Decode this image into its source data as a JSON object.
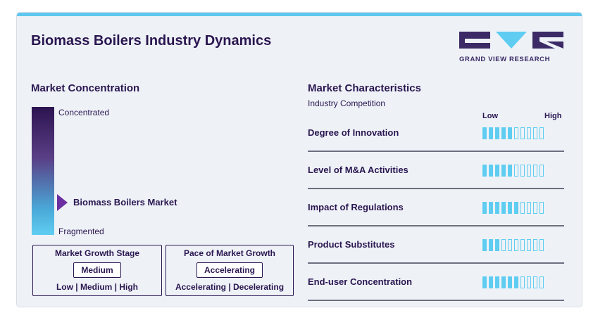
{
  "title": "Biomass Boilers Industry Dynamics",
  "logo": {
    "text": "GRAND VIEW RESEARCH",
    "colors": {
      "dark": "#3b2a66",
      "accent": "#5fcdf1"
    }
  },
  "concentration": {
    "heading": "Market Concentration",
    "top_label": "Concentrated",
    "bottom_label": "Fragmented",
    "marker_label": "Biomass Boilers Market"
  },
  "growth_stage": {
    "heading": "Market Growth Stage",
    "value": "Medium",
    "options": "Low | Medium | High"
  },
  "growth_pace": {
    "heading": "Pace of Market Growth",
    "value": "Accelerating",
    "options": "Accelerating | Decelerating"
  },
  "characteristics": {
    "heading": "Market Characteristics",
    "subheading": "Industry Competition",
    "low_label": "Low",
    "high_label": "High",
    "total_segments": 10,
    "rows": [
      {
        "label": "Degree of Innovation",
        "level": 5
      },
      {
        "label": "Level of M&A Activities",
        "level": 5
      },
      {
        "label": "Impact of Regulations",
        "level": 6
      },
      {
        "label": "Product Substitutes",
        "level": 3
      },
      {
        "label": "End-user Concentration",
        "level": 6
      }
    ]
  },
  "colors": {
    "accent": "#5fcdf1",
    "text": "#2a1650",
    "marker": "#6b2fa0"
  }
}
